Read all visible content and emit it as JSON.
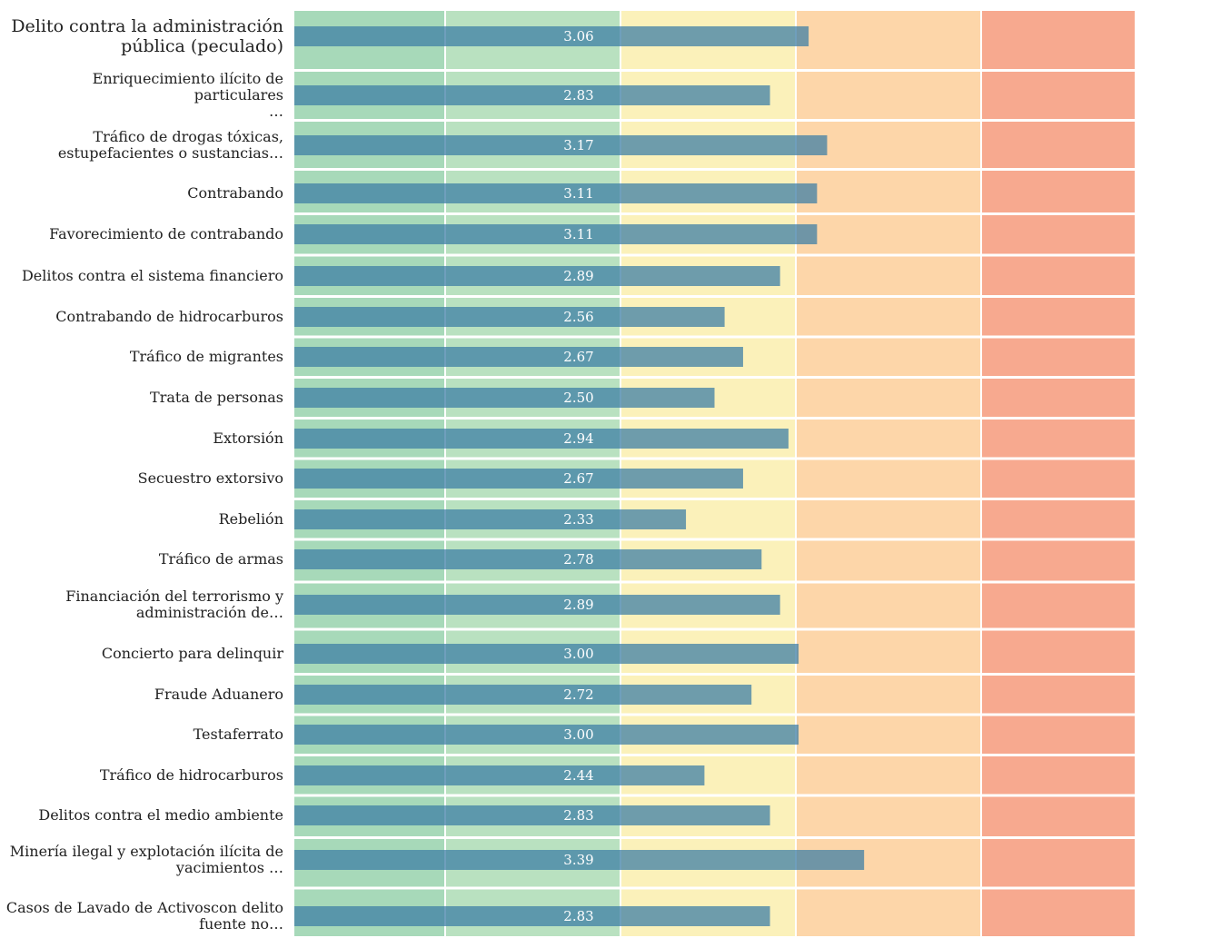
{
  "chart_data": {
    "type": "bar",
    "orientation": "horizontal",
    "categories": [
      "Delito contra la administración\npública (peculado)",
      "Enriquecimiento ilícito de particulares\n…",
      "Tráfico de drogas tóxicas,\nestupefacientes o sustancias…",
      "Contrabando",
      "Favorecimiento de contrabando",
      "Delitos contra el sistema financiero",
      "Contrabando de hidrocarburos",
      "Tráfico de migrantes",
      "Trata de personas",
      "Extorsión",
      "Secuestro extorsivo",
      "Rebelión",
      "Tráfico de armas",
      "Financiación del terrorismo y\nadministración de…",
      "Concierto para delinquir",
      "Fraude Aduanero",
      "Testaferrato",
      "Tráfico de hidrocarburos",
      "Delitos contra el medio ambiente",
      "Minería ilegal y explotación ilícita de\nyacimientos …",
      "Casos de Lavado de Activoscon delito\nfuente no…"
    ],
    "values": [
      3.06,
      2.83,
      3.17,
      3.11,
      3.11,
      2.89,
      2.56,
      2.67,
      2.5,
      2.94,
      2.67,
      2.33,
      2.78,
      2.89,
      3,
      2.72,
      3,
      2.44,
      2.83,
      3.39,
      2.83
    ],
    "value_labels": [
      "3.06",
      "2.83",
      "3.17",
      "3.11",
      "3.11",
      "2.89",
      "2.56",
      "2.67",
      "2.50",
      "2.94",
      "2.67",
      "2.33",
      "2.78",
      "2.89",
      "3.00",
      "2.72",
      "3.00",
      "2.44",
      "2.83",
      "3.39",
      "2.83"
    ],
    "color": "#3f7fa6",
    "xlim": [
      0,
      5
    ]
  }
}
